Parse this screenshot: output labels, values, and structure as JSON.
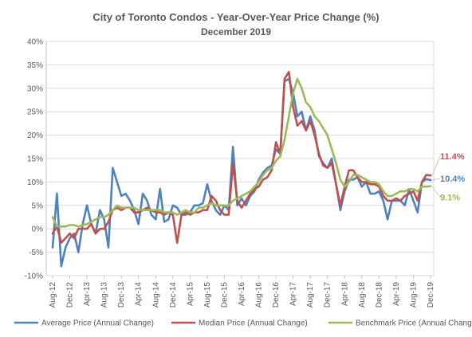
{
  "chart_data": {
    "type": "line",
    "title": "City of Toronto Condos - Year-Over-Year Price Change (%)",
    "subtitle": "December 2019",
    "xlabel": "",
    "ylabel": "",
    "ylim": [
      -10,
      40
    ],
    "y_ticks": [
      "-10%",
      "-5%",
      "0%",
      "5%",
      "10%",
      "15%",
      "20%",
      "25%",
      "30%",
      "35%",
      "40%"
    ],
    "y_tick_values": [
      -10,
      -5,
      0,
      5,
      10,
      15,
      20,
      25,
      30,
      35,
      40
    ],
    "x_tick_labels": [
      "Aug-12",
      "Dec-12",
      "Apr-13",
      "Aug-13",
      "Dec-13",
      "Apr-14",
      "Aug-14",
      "Dec-14",
      "Apr-15",
      "Aug-15",
      "Dec-15",
      "Apr-16",
      "Aug-16",
      "Dec-16",
      "Apr-17",
      "Aug-17",
      "Dec-17",
      "Apr-18",
      "Aug-18",
      "Dec-18",
      "Apr-19",
      "Aug-19",
      "Dec-19"
    ],
    "x": [
      "Aug-12",
      "Sep-12",
      "Oct-12",
      "Nov-12",
      "Dec-12",
      "Jan-13",
      "Feb-13",
      "Mar-13",
      "Apr-13",
      "May-13",
      "Jun-13",
      "Jul-13",
      "Aug-13",
      "Sep-13",
      "Oct-13",
      "Nov-13",
      "Dec-13",
      "Jan-14",
      "Feb-14",
      "Mar-14",
      "Apr-14",
      "May-14",
      "Jun-14",
      "Jul-14",
      "Aug-14",
      "Sep-14",
      "Oct-14",
      "Nov-14",
      "Dec-14",
      "Jan-15",
      "Feb-15",
      "Mar-15",
      "Apr-15",
      "May-15",
      "Jun-15",
      "Jul-15",
      "Aug-15",
      "Sep-15",
      "Oct-15",
      "Nov-15",
      "Dec-15",
      "Jan-16",
      "Feb-16",
      "Mar-16",
      "Apr-16",
      "May-16",
      "Jun-16",
      "Jul-16",
      "Aug-16",
      "Sep-16",
      "Oct-16",
      "Nov-16",
      "Dec-16",
      "Jan-17",
      "Feb-17",
      "Mar-17",
      "Apr-17",
      "May-17",
      "Jun-17",
      "Jul-17",
      "Aug-17",
      "Sep-17",
      "Oct-17",
      "Nov-17",
      "Dec-17",
      "Jan-18",
      "Feb-18",
      "Mar-18",
      "Apr-18",
      "May-18",
      "Jun-18",
      "Jul-18",
      "Aug-18",
      "Sep-18",
      "Oct-18",
      "Nov-18",
      "Dec-18",
      "Jan-19",
      "Feb-19",
      "Mar-19",
      "Apr-19",
      "May-19",
      "Jun-19",
      "Jul-19",
      "Aug-19",
      "Sep-19",
      "Oct-19",
      "Nov-19",
      "Dec-19"
    ],
    "series": [
      {
        "name": "Average Price (Annual Change)",
        "color": "#4f81bd",
        "values": [
          -4,
          7.5,
          -8,
          -4,
          -2,
          -1,
          -5,
          1,
          5,
          1,
          -1,
          4,
          2,
          -4,
          13,
          10,
          7,
          7.5,
          6,
          4,
          1,
          7.5,
          6,
          3,
          2,
          8.5,
          1.5,
          2,
          5,
          4.5,
          3,
          3,
          3.5,
          5,
          5,
          5.5,
          9.5,
          6,
          4,
          3,
          5,
          4,
          17.5,
          5,
          6.5,
          5,
          7,
          8,
          10.5,
          12,
          13,
          13.5,
          17,
          16,
          31.5,
          32,
          29,
          24,
          25,
          21,
          24,
          21,
          15.5,
          14,
          13,
          15,
          9.5,
          4,
          8,
          10.5,
          10.5,
          11,
          9,
          10,
          7.5,
          7.5,
          8,
          6,
          2,
          6,
          6,
          6,
          5,
          8.5,
          6,
          3.5,
          10,
          10.6,
          10.4
        ]
      },
      {
        "name": "Median Price (Annual Change)",
        "color": "#c0504d",
        "values": [
          -1,
          0.5,
          -3,
          -2,
          -1,
          -2,
          0,
          0,
          0,
          1,
          -1,
          0,
          0,
          1.5,
          4,
          4.5,
          4,
          4.5,
          4.5,
          3.5,
          3.5,
          4,
          4.5,
          4,
          3.5,
          3.5,
          3,
          3.5,
          3,
          -3,
          3,
          3.5,
          3,
          3.5,
          3.5,
          4,
          4,
          7,
          6,
          4,
          3,
          3,
          14,
          6,
          4.5,
          6,
          7.5,
          8.5,
          9,
          10.5,
          11,
          12.5,
          18.5,
          16,
          32,
          33.5,
          26,
          22,
          23,
          21,
          23,
          20,
          16,
          13.5,
          13,
          14,
          9.5,
          5,
          9,
          12.5,
          12.5,
          11,
          10,
          10,
          9.5,
          9.5,
          9,
          7,
          6,
          6,
          6.5,
          6,
          7,
          7.5,
          8,
          6,
          10,
          11.5,
          11.4
        ]
      },
      {
        "name": "Benchmark Price (Annual Change)",
        "color": "#9bbb59",
        "values": [
          2.5,
          0.5,
          0.5,
          0.5,
          0.8,
          0.8,
          0.5,
          0.8,
          1,
          1.5,
          2,
          2.5,
          2.5,
          3,
          4,
          5,
          4.5,
          4.5,
          4.5,
          4.5,
          4,
          4,
          4,
          4,
          4,
          4,
          3.5,
          3.5,
          3.5,
          3,
          3.5,
          4,
          3.5,
          3.5,
          4.5,
          4.5,
          5,
          5.5,
          5,
          5,
          5,
          5,
          6,
          6.5,
          7,
          7.5,
          8,
          9,
          10,
          11.5,
          12.5,
          13,
          14.5,
          15.5,
          19,
          24,
          29,
          32,
          30,
          27,
          26,
          24,
          23,
          21.5,
          20,
          17,
          14,
          10.5,
          9,
          10,
          11.5,
          11.5,
          11,
          10.5,
          10,
          10,
          9.5,
          8,
          7,
          7,
          7.5,
          8,
          8,
          8.5,
          8.5,
          8,
          9,
          9,
          9.1
        ]
      }
    ],
    "end_labels": [
      {
        "series": "Median Price (Annual Change)",
        "text": "11.4%",
        "color": "#c0504d"
      },
      {
        "series": "Average Price (Annual Change)",
        "text": "10.4%",
        "color": "#4f81bd"
      },
      {
        "series": "Benchmark Price (Annual Change)",
        "text": "9.1%",
        "color": "#9bbb59"
      }
    ],
    "grid": true,
    "legend_position": "bottom"
  }
}
